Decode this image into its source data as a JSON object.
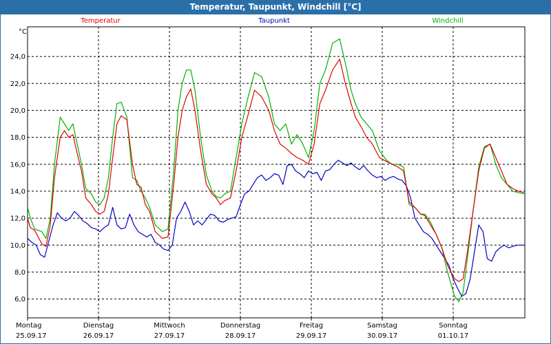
{
  "window": {
    "title": "Temperatur, Taupunkt, Windchill [°C]"
  },
  "chart_data": {
    "type": "line",
    "title": "Temperatur, Taupunkt, Windchill [°C]",
    "ylabel": "°C",
    "ylim": [
      4.6,
      26.2
    ],
    "yticks": [
      "6,0",
      "8,0",
      "10,0",
      "12,0",
      "14,0",
      "16,0",
      "18,0",
      "20,0",
      "22,0",
      "24,0"
    ],
    "ytick_values": [
      6,
      8,
      10,
      12,
      14,
      16,
      18,
      20,
      22,
      24
    ],
    "xlim": [
      0,
      7
    ],
    "x_ticks": [
      {
        "day": "Montag",
        "date": "25.09.17",
        "x": 0
      },
      {
        "day": "Dienstag",
        "date": "26.09.17",
        "x": 1
      },
      {
        "day": "Mittwoch",
        "date": "27.09.17",
        "x": 2
      },
      {
        "day": "Donnerstag",
        "date": "28.09.17",
        "x": 3
      },
      {
        "day": "Freitag",
        "date": "29.09.17",
        "x": 4
      },
      {
        "day": "Samstag",
        "date": "30.09.17",
        "x": 5
      },
      {
        "day": "Sonntag",
        "date": "01.10.17",
        "x": 6
      }
    ],
    "grid": true,
    "legend_position": "top",
    "series": [
      {
        "name": "Temperatur",
        "color": "#e00000",
        "x": [
          0,
          0.04,
          0.1,
          0.2,
          0.26,
          0.32,
          0.38,
          0.46,
          0.52,
          0.58,
          0.64,
          0.7,
          0.76,
          0.82,
          0.9,
          0.96,
          1.02,
          1.08,
          1.14,
          1.2,
          1.26,
          1.32,
          1.4,
          1.48,
          1.54,
          1.6,
          1.66,
          1.72,
          1.8,
          1.9,
          1.98,
          2.06,
          2.12,
          2.18,
          2.24,
          2.3,
          2.36,
          2.44,
          2.52,
          2.6,
          2.66,
          2.72,
          2.78,
          2.86,
          2.94,
          3.02,
          3.1,
          3.2,
          3.3,
          3.4,
          3.48,
          3.56,
          3.64,
          3.72,
          3.8,
          3.88,
          3.96,
          4.04,
          4.12,
          4.2,
          4.3,
          4.4,
          4.48,
          4.56,
          4.62,
          4.7,
          4.78,
          4.86,
          4.96,
          5.06,
          5.14,
          5.22,
          5.3,
          5.38,
          5.46,
          5.54,
          5.6,
          5.68,
          5.76,
          5.84,
          5.92,
          6.02,
          6.08,
          6.14,
          6.2,
          6.28,
          6.36,
          6.44,
          6.52,
          6.6,
          6.68,
          6.76,
          6.84,
          6.92,
          7
        ],
        "values": [
          12.0,
          11.3,
          11.1,
          10.1,
          9.9,
          11.5,
          15.0,
          18.0,
          18.5,
          18.0,
          18.2,
          16.8,
          15.5,
          13.5,
          13.0,
          12.5,
          12.3,
          12.5,
          13.8,
          16.5,
          19.0,
          19.6,
          19.3,
          16.0,
          14.5,
          14.3,
          13.0,
          12.5,
          11.0,
          10.5,
          10.6,
          14.5,
          18.0,
          20.0,
          21.0,
          21.6,
          20.0,
          17.0,
          14.5,
          13.8,
          13.5,
          13.0,
          13.3,
          13.5,
          15.5,
          18.0,
          19.5,
          21.5,
          21.0,
          20.0,
          18.5,
          17.5,
          17.2,
          16.8,
          16.5,
          16.3,
          16.0,
          17.5,
          20.5,
          21.5,
          23.0,
          23.8,
          22.0,
          20.5,
          19.5,
          18.8,
          18.0,
          17.5,
          16.5,
          16.2,
          16.0,
          15.8,
          15.5,
          13.2,
          12.8,
          12.3,
          12.2,
          11.5,
          10.8,
          9.8,
          8.5,
          7.5,
          7.3,
          7.5,
          9.5,
          12.5,
          15.5,
          17.2,
          17.5,
          16.5,
          15.5,
          14.5,
          14.2,
          14.0,
          13.9
        ]
      },
      {
        "name": "Taupunkt",
        "color": "#0000c0",
        "x": [
          0,
          0.06,
          0.12,
          0.18,
          0.24,
          0.3,
          0.36,
          0.42,
          0.48,
          0.54,
          0.6,
          0.66,
          0.72,
          0.78,
          0.84,
          0.9,
          0.96,
          1.02,
          1.08,
          1.14,
          1.2,
          1.26,
          1.32,
          1.38,
          1.44,
          1.5,
          1.56,
          1.62,
          1.68,
          1.74,
          1.8,
          1.86,
          1.92,
          1.98,
          2.04,
          2.1,
          2.16,
          2.22,
          2.28,
          2.34,
          2.4,
          2.46,
          2.52,
          2.58,
          2.64,
          2.7,
          2.76,
          2.82,
          2.88,
          2.94,
          3.0,
          3.06,
          3.12,
          3.18,
          3.24,
          3.3,
          3.36,
          3.42,
          3.48,
          3.54,
          3.6,
          3.66,
          3.72,
          3.78,
          3.84,
          3.9,
          3.96,
          4.02,
          4.08,
          4.14,
          4.2,
          4.26,
          4.32,
          4.38,
          4.44,
          4.5,
          4.56,
          4.62,
          4.68,
          4.74,
          4.8,
          4.86,
          4.92,
          4.98,
          5.04,
          5.1,
          5.16,
          5.22,
          5.28,
          5.34,
          5.4,
          5.46,
          5.52,
          5.58,
          5.64,
          5.7,
          5.76,
          5.82,
          5.88,
          5.94,
          6.0,
          6.06,
          6.12,
          6.18,
          6.24,
          6.3,
          6.36,
          6.42,
          6.48,
          6.54,
          6.6,
          6.66,
          6.72,
          6.78,
          6.84,
          6.9,
          6.96,
          7
        ],
        "values": [
          10.5,
          10.2,
          10.0,
          9.3,
          9.1,
          10.3,
          11.5,
          12.4,
          12.0,
          11.8,
          12.0,
          12.5,
          12.2,
          11.8,
          11.6,
          11.3,
          11.2,
          11.0,
          11.3,
          11.5,
          12.8,
          11.5,
          11.2,
          11.3,
          12.3,
          11.5,
          11.0,
          10.8,
          10.6,
          10.8,
          10.2,
          10.0,
          9.7,
          9.6,
          10.0,
          12.0,
          12.5,
          13.2,
          12.5,
          11.5,
          11.8,
          11.5,
          11.9,
          12.3,
          12.2,
          11.8,
          11.7,
          11.9,
          12.0,
          12.1,
          13.0,
          13.8,
          14.0,
          14.5,
          15.0,
          15.2,
          14.8,
          15.0,
          15.3,
          15.2,
          14.5,
          15.9,
          16.0,
          15.5,
          15.3,
          15.0,
          15.5,
          15.3,
          15.4,
          14.8,
          15.5,
          15.6,
          16.0,
          16.3,
          16.1,
          15.9,
          16.1,
          15.8,
          15.6,
          15.9,
          15.5,
          15.2,
          15.0,
          15.1,
          14.8,
          15.0,
          15.1,
          14.9,
          14.8,
          14.4,
          13.5,
          12.0,
          11.5,
          11.0,
          10.8,
          10.5,
          10.0,
          9.5,
          9.0,
          8.5,
          7.5,
          6.8,
          6.2,
          6.4,
          7.5,
          9.5,
          11.5,
          11.0,
          9.0,
          8.8,
          9.5,
          9.8,
          10.0,
          9.8,
          9.9,
          10.0,
          10.0,
          10.0
        ]
      },
      {
        "name": "Windchill",
        "color": "#00b000",
        "x": [
          0,
          0.04,
          0.1,
          0.2,
          0.26,
          0.32,
          0.38,
          0.46,
          0.52,
          0.58,
          0.64,
          0.7,
          0.76,
          0.82,
          0.9,
          0.96,
          1.02,
          1.08,
          1.14,
          1.2,
          1.26,
          1.32,
          1.4,
          1.48,
          1.54,
          1.6,
          1.66,
          1.72,
          1.8,
          1.9,
          1.98,
          2.06,
          2.12,
          2.18,
          2.24,
          2.3,
          2.36,
          2.44,
          2.52,
          2.6,
          2.66,
          2.72,
          2.78,
          2.86,
          2.94,
          3.02,
          3.1,
          3.2,
          3.3,
          3.4,
          3.48,
          3.56,
          3.64,
          3.72,
          3.8,
          3.88,
          3.96,
          4.04,
          4.12,
          4.2,
          4.3,
          4.4,
          4.48,
          4.56,
          4.62,
          4.7,
          4.78,
          4.86,
          4.96,
          5.06,
          5.14,
          5.22,
          5.3,
          5.38,
          5.46,
          5.54,
          5.6,
          5.68,
          5.76,
          5.84,
          5.92,
          6.02,
          6.08,
          6.14,
          6.2,
          6.28,
          6.36,
          6.44,
          6.52,
          6.6,
          6.68,
          6.76,
          6.84,
          6.92,
          7
        ],
        "values": [
          12.8,
          12.0,
          11.2,
          11.0,
          10.5,
          12.0,
          16.0,
          19.5,
          19.0,
          18.5,
          19.0,
          17.5,
          16.0,
          14.2,
          13.8,
          13.2,
          13.0,
          13.5,
          15.0,
          18.0,
          20.5,
          20.6,
          19.5,
          15.0,
          14.8,
          14.0,
          13.5,
          12.8,
          11.5,
          11.0,
          11.2,
          15.5,
          20.0,
          22.0,
          23.0,
          23.0,
          21.5,
          18.0,
          15.2,
          14.0,
          13.6,
          13.5,
          13.8,
          14.0,
          16.5,
          19.0,
          20.8,
          22.8,
          22.5,
          21.0,
          19.0,
          18.5,
          19.0,
          17.5,
          18.2,
          17.5,
          16.5,
          18.5,
          22.0,
          23.0,
          25.0,
          25.3,
          23.5,
          21.5,
          20.5,
          19.5,
          19.0,
          18.5,
          17.0,
          16.3,
          16.0,
          16.0,
          15.8,
          13.0,
          12.8,
          12.3,
          12.3,
          11.7,
          10.8,
          9.8,
          8.0,
          6.2,
          5.8,
          6.5,
          9.0,
          12.5,
          15.8,
          17.3,
          17.5,
          16.0,
          15.0,
          14.5,
          14.0,
          13.9,
          13.8
        ]
      }
    ]
  }
}
